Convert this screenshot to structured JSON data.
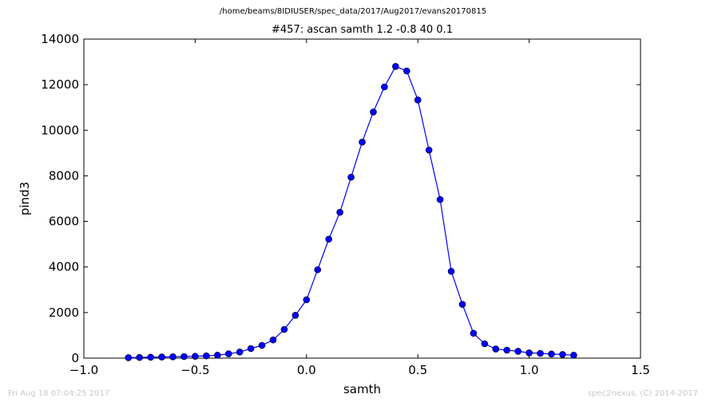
{
  "header": {
    "path": "/home/beams/8IDIUSER/spec_data/2017/Aug2017/evans20170815"
  },
  "footer": {
    "timestamp": "Fri Aug 18 07:04:25 2017",
    "credit": "spec2nexus, (C) 2014-2017"
  },
  "colors": {
    "series": "#0000ff",
    "axes": "#000000"
  },
  "chart_data": {
    "type": "line",
    "title": "#457: ascan  samth 1.2 -0.8  40 0.1",
    "xlabel": "samth",
    "ylabel": "pind3",
    "xlim": [
      -1.0,
      1.5
    ],
    "ylim": [
      0,
      14000
    ],
    "xticks": [
      -1.0,
      -0.5,
      0.0,
      0.5,
      1.0,
      1.5
    ],
    "xtick_labels": [
      "−1.0",
      "−0.5",
      "0.0",
      "0.5",
      "1.0",
      "1.5"
    ],
    "yticks": [
      0,
      2000,
      4000,
      6000,
      8000,
      10000,
      12000,
      14000
    ],
    "ytick_labels": [
      "0",
      "2000",
      "4000",
      "6000",
      "8000",
      "10000",
      "12000",
      "14000"
    ],
    "grid": false,
    "marker": "circle",
    "series": [
      {
        "x": [
          -0.8,
          -0.75,
          -0.7,
          -0.65,
          -0.6,
          -0.55,
          -0.5,
          -0.45,
          -0.4,
          -0.35,
          -0.3,
          -0.25,
          -0.2,
          -0.15,
          -0.1,
          -0.05,
          0.0,
          0.05,
          0.1,
          0.15,
          0.2,
          0.25,
          0.3,
          0.35,
          0.4,
          0.45,
          0.5,
          0.55,
          0.6,
          0.65,
          0.7,
          0.75,
          0.8,
          0.85,
          0.9,
          0.95,
          1.0,
          1.05,
          1.1,
          1.15,
          1.2
        ],
        "y": [
          20,
          30,
          40,
          50,
          60,
          70,
          80,
          100,
          130,
          190,
          270,
          420,
          560,
          800,
          1260,
          1880,
          2560,
          3880,
          5220,
          6400,
          7940,
          9480,
          10800,
          11900,
          12800,
          12600,
          11330,
          9130,
          6960,
          3810,
          2360,
          1090,
          630,
          400,
          350,
          300,
          230,
          210,
          180,
          160,
          130
        ]
      }
    ]
  }
}
